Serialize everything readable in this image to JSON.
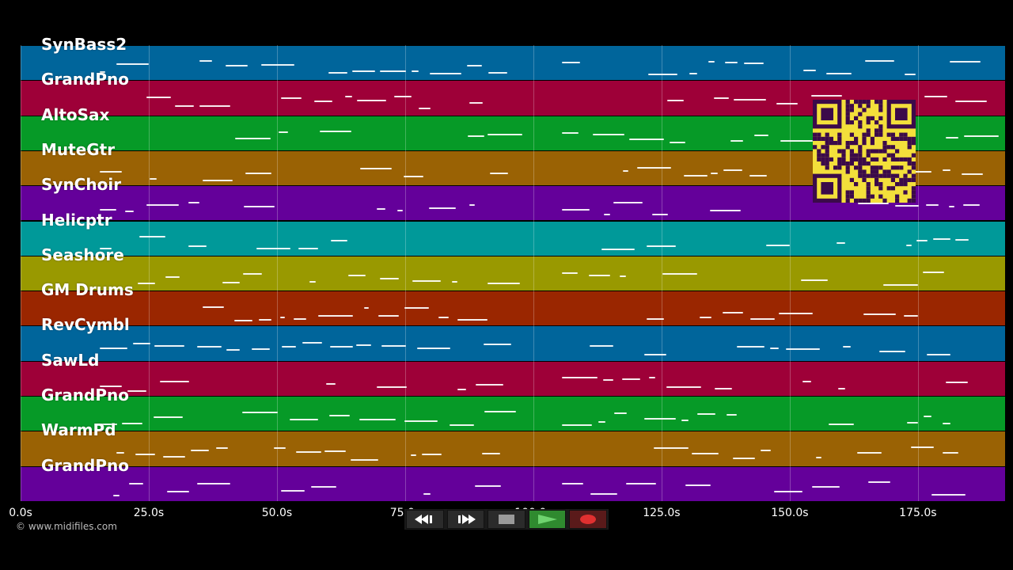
{
  "tracks": [
    {
      "name": "SynBass2",
      "color": "#00659b"
    },
    {
      "name": "GrandPno",
      "color": "#9e0038"
    },
    {
      "name": "AltoSax",
      "color": "#069a27"
    },
    {
      "name": "MuteGtr",
      "color": "#9a6204"
    },
    {
      "name": "SynChoir",
      "color": "#64009a"
    },
    {
      "name": "Helicptr",
      "color": "#009999"
    },
    {
      "name": "Seashore",
      "color": "#999900"
    },
    {
      "name": "GM Drums",
      "color": "#9a2600"
    },
    {
      "name": "RevCymbl",
      "color": "#00659b"
    },
    {
      "name": "SawLd",
      "color": "#9e0038"
    },
    {
      "name": "GrandPno",
      "color": "#069a27"
    },
    {
      "name": "WarmPd",
      "color": "#9a6204"
    },
    {
      "name": "GrandPno",
      "color": "#64009a"
    }
  ],
  "timeline": {
    "ticks": [
      "0.0s",
      "25.0s",
      "50.0s",
      "75.0s",
      "100.0s",
      "125.0s",
      "150.0s",
      "175.0s"
    ],
    "max_seconds": 192
  },
  "copyright": "© www.midifiles.com",
  "transport": {
    "rewind": "rewind-icon",
    "fast_forward": "fast-forward-icon",
    "stop": "stop-icon",
    "play": "play-icon",
    "record": "record-icon"
  },
  "overlay": {
    "qr": "qr-code"
  }
}
